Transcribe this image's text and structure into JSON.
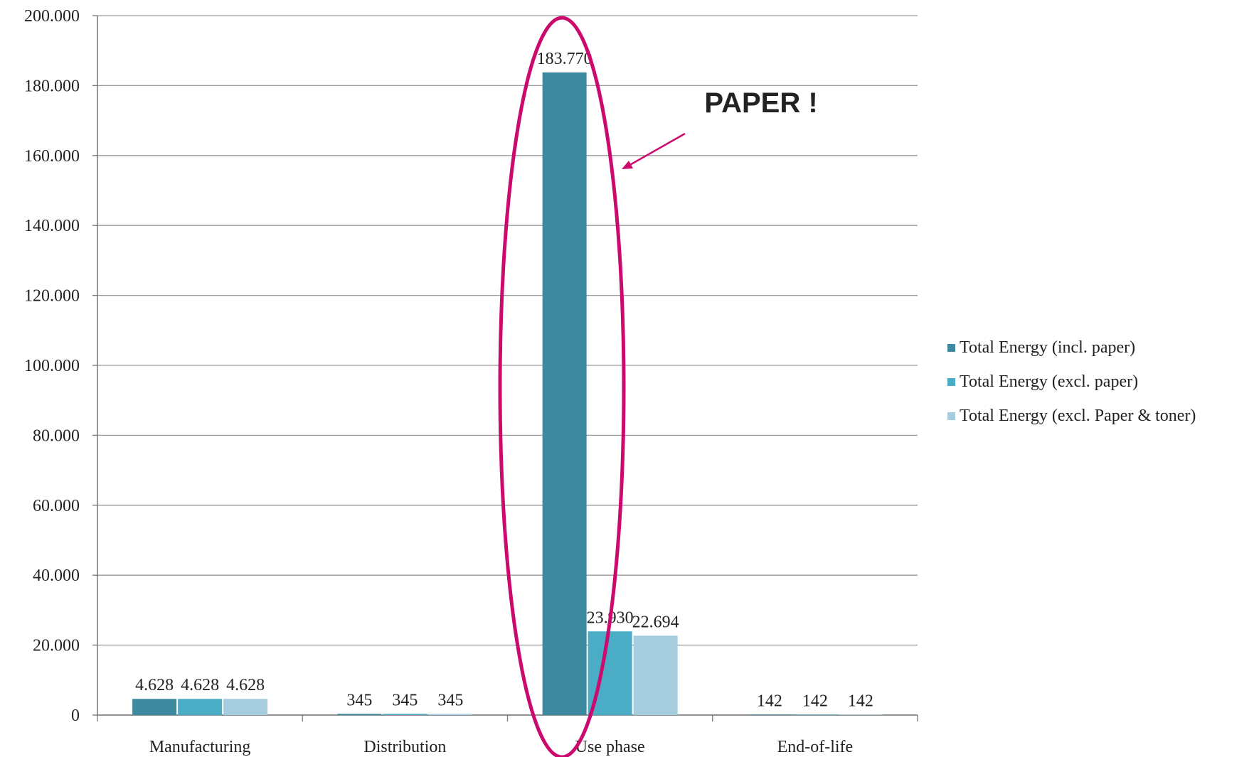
{
  "chart_data": {
    "type": "bar",
    "categories": [
      "Manufacturing",
      "Distribution",
      "Use phase",
      "End-of-life"
    ],
    "series": [
      {
        "name": "Total Energy (incl. paper)",
        "values": [
          4628,
          345,
          183770,
          142
        ],
        "labels": [
          "4.628",
          "345",
          "183.770",
          "142"
        ],
        "color": "#3d8aa0"
      },
      {
        "name": "Total Energy (excl. paper)",
        "values": [
          4628,
          345,
          23930,
          142
        ],
        "labels": [
          "4.628",
          "345",
          "23.930",
          "142"
        ],
        "color": "#4bacc6"
      },
      {
        "name": "Total Energy (excl. Paper & toner)",
        "values": [
          4628,
          345,
          22694,
          142
        ],
        "labels": [
          "4.628",
          "345",
          "22.694",
          "142"
        ],
        "color": "#a5cddd"
      }
    ],
    "ylim": [
      0,
      200000
    ],
    "yticks": [
      0,
      20000,
      40000,
      60000,
      80000,
      100000,
      120000,
      140000,
      160000,
      180000,
      200000
    ],
    "ytick_labels": [
      "0",
      "20.000",
      "40.000",
      "60.000",
      "80.000",
      "100.000",
      "120.000",
      "140.000",
      "160.000",
      "180.000",
      "200.000"
    ],
    "grid": true,
    "legend": "right",
    "annotation": {
      "text": "PAPER !",
      "color": "#cc0a6e",
      "highlight_category": "Use phase"
    }
  }
}
